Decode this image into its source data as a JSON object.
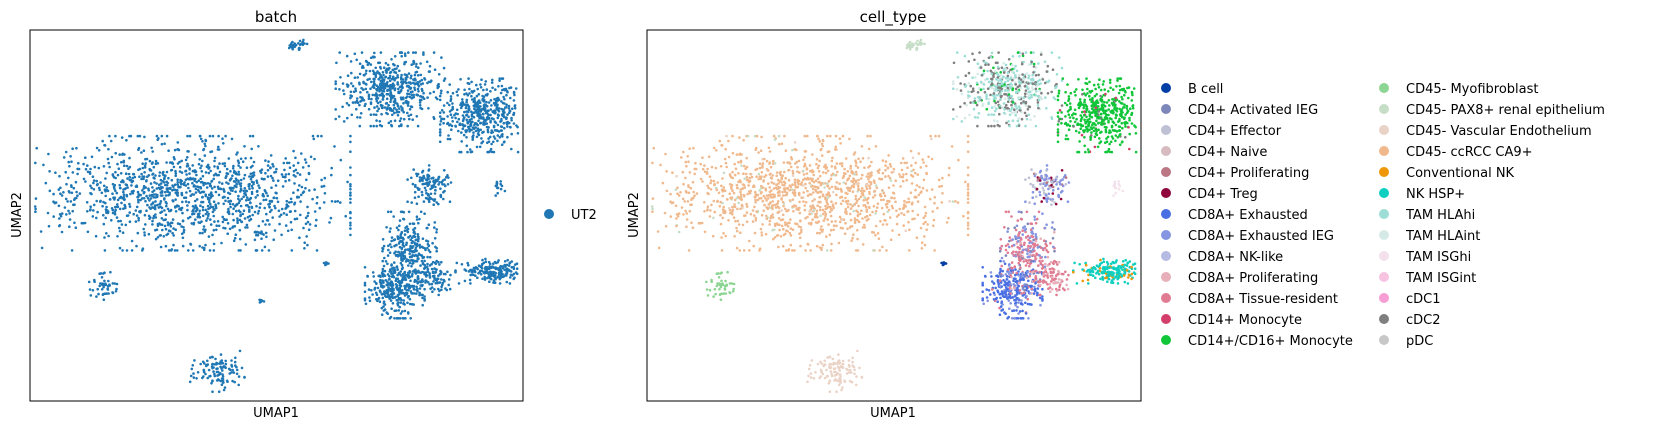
{
  "panels": [
    {
      "title": "batch",
      "xlabel": "UMAP1",
      "ylabel": "UMAP2",
      "legend": [
        {
          "label": "UT2",
          "color": "#1f77b4"
        }
      ]
    },
    {
      "title": "cell_type",
      "xlabel": "UMAP1",
      "ylabel": "UMAP2",
      "legend": [
        {
          "label": "B cell",
          "color": "#023fa5"
        },
        {
          "label": "CD4+ Activated IEG",
          "color": "#7d87b9"
        },
        {
          "label": "CD4+ Effector",
          "color": "#bec1d4"
        },
        {
          "label": "CD4+ Naive",
          "color": "#d6bcc0"
        },
        {
          "label": "CD4+ Proliferating",
          "color": "#bb7784"
        },
        {
          "label": "CD4+ Treg",
          "color": "#8e063b"
        },
        {
          "label": "CD8A+ Exhausted",
          "color": "#4a6fe3"
        },
        {
          "label": "CD8A+ Exhausted IEG",
          "color": "#8595e1"
        },
        {
          "label": "CD8A+ NK-like",
          "color": "#b5bbe3"
        },
        {
          "label": "CD8A+ Proliferating",
          "color": "#e6afb9"
        },
        {
          "label": "CD8A+ Tissue-resident",
          "color": "#e07b91"
        },
        {
          "label": "CD14+ Monocyte",
          "color": "#d33f6a"
        },
        {
          "label": "CD14+/CD16+ Monocyte",
          "color": "#11c638"
        },
        {
          "label": "CD45- Myofibroblast",
          "color": "#8dd593"
        },
        {
          "label": "CD45- PAX8+ renal epithelium",
          "color": "#c6dec7"
        },
        {
          "label": "CD45- Vascular Endothelium",
          "color": "#ead3c6"
        },
        {
          "label": "CD45- ccRCC CA9+",
          "color": "#f0b98d"
        },
        {
          "label": "Conventional NK",
          "color": "#ef9708"
        },
        {
          "label": "NK HSP+",
          "color": "#0fcfc0"
        },
        {
          "label": "TAM HLAhi",
          "color": "#9cded6"
        },
        {
          "label": "TAM HLAint",
          "color": "#d5eae7"
        },
        {
          "label": "TAM ISGhi",
          "color": "#f3e1eb"
        },
        {
          "label": "TAM ISGint",
          "color": "#f6c4e1"
        },
        {
          "label": "cDC1",
          "color": "#f79cd4"
        },
        {
          "label": "cDC2",
          "color": "#7f7f7f"
        },
        {
          "label": "pDC",
          "color": "#c7c7c7"
        }
      ]
    }
  ],
  "chart_data": {
    "type": "scatter",
    "x_label": "UMAP1",
    "y_label": "UMAP2",
    "grid": false,
    "axis_ticks": false,
    "plots": [
      {
        "title": "batch",
        "color_by": "batch",
        "legend_placement": "right",
        "series": [
          {
            "name": "UT2",
            "color": "#1f77b4"
          }
        ]
      },
      {
        "title": "cell_type",
        "color_by": "cell_type",
        "legend_placement": "right, two columns",
        "series_count": 26
      }
    ],
    "clusters": [
      {
        "cx": 0.32,
        "cy": 0.56,
        "rx": 0.3,
        "ry": 0.14,
        "n": 1300,
        "colors": [
          [
            "#f0b98d",
            0.93
          ],
          [
            "#c6dec7",
            0.05
          ],
          [
            "#ead3c6",
            0.02
          ]
        ]
      },
      {
        "cx": 0.54,
        "cy": 0.96,
        "rx": 0.02,
        "ry": 0.012,
        "n": 30,
        "colors": [
          [
            "#c6dec7",
            1
          ]
        ]
      },
      {
        "cx": 0.15,
        "cy": 0.31,
        "rx": 0.028,
        "ry": 0.035,
        "n": 45,
        "colors": [
          [
            "#8dd593",
            1
          ]
        ]
      },
      {
        "cx": 0.38,
        "cy": 0.08,
        "rx": 0.05,
        "ry": 0.05,
        "n": 110,
        "colors": [
          [
            "#ead3c6",
            1
          ]
        ]
      },
      {
        "cx": 0.6,
        "cy": 0.37,
        "rx": 0.006,
        "ry": 0.008,
        "n": 8,
        "colors": [
          [
            "#023fa5",
            1
          ]
        ]
      },
      {
        "cx": 0.95,
        "cy": 0.58,
        "rx": 0.012,
        "ry": 0.025,
        "n": 14,
        "colors": [
          [
            "#f3e1eb",
            1
          ]
        ]
      },
      {
        "cx": 0.73,
        "cy": 0.84,
        "rx": 0.1,
        "ry": 0.09,
        "n": 520,
        "colors": [
          [
            "#9cded6",
            0.48
          ],
          [
            "#7f7f7f",
            0.3
          ],
          [
            "#d5eae7",
            0.15
          ],
          [
            "#11c638",
            0.07
          ]
        ]
      },
      {
        "cx": 0.92,
        "cy": 0.77,
        "rx": 0.08,
        "ry": 0.09,
        "n": 480,
        "colors": [
          [
            "#11c638",
            0.93
          ],
          [
            "#d33f6a",
            0.04
          ],
          [
            "#7f7f7f",
            0.03
          ]
        ]
      },
      {
        "cx": 0.74,
        "cy": 0.3,
        "rx": 0.055,
        "ry": 0.07,
        "n": 280,
        "colors": [
          [
            "#4a6fe3",
            0.8
          ],
          [
            "#8595e1",
            0.15
          ],
          [
            "#e07b91",
            0.05
          ]
        ]
      },
      {
        "cx": 0.77,
        "cy": 0.4,
        "rx": 0.05,
        "ry": 0.1,
        "n": 300,
        "colors": [
          [
            "#e07b91",
            0.5
          ],
          [
            "#8595e1",
            0.25
          ],
          [
            "#7d87b9",
            0.15
          ],
          [
            "#e6afb9",
            0.1
          ]
        ]
      },
      {
        "cx": 0.82,
        "cy": 0.33,
        "rx": 0.03,
        "ry": 0.04,
        "n": 80,
        "colors": [
          [
            "#e07b91",
            0.7
          ],
          [
            "#e6afb9",
            0.3
          ]
        ]
      },
      {
        "cx": 0.81,
        "cy": 0.58,
        "rx": 0.04,
        "ry": 0.05,
        "n": 120,
        "colors": [
          [
            "#8595e1",
            0.5
          ],
          [
            "#bec1d4",
            0.3
          ],
          [
            "#8e063b",
            0.1
          ],
          [
            "#bb7784",
            0.1
          ]
        ]
      },
      {
        "cx": 0.94,
        "cy": 0.35,
        "rx": 0.07,
        "ry": 0.03,
        "n": 200,
        "colors": [
          [
            "#0fcfc0",
            0.8
          ],
          [
            "#ef9708",
            0.2
          ]
        ]
      }
    ],
    "batch_extra_clusters": [
      {
        "cx": 0.47,
        "cy": 0.45,
        "rx": 0.015,
        "ry": 0.012,
        "n": 10
      },
      {
        "cx": 0.47,
        "cy": 0.27,
        "rx": 0.008,
        "ry": 0.006,
        "n": 6
      }
    ]
  }
}
